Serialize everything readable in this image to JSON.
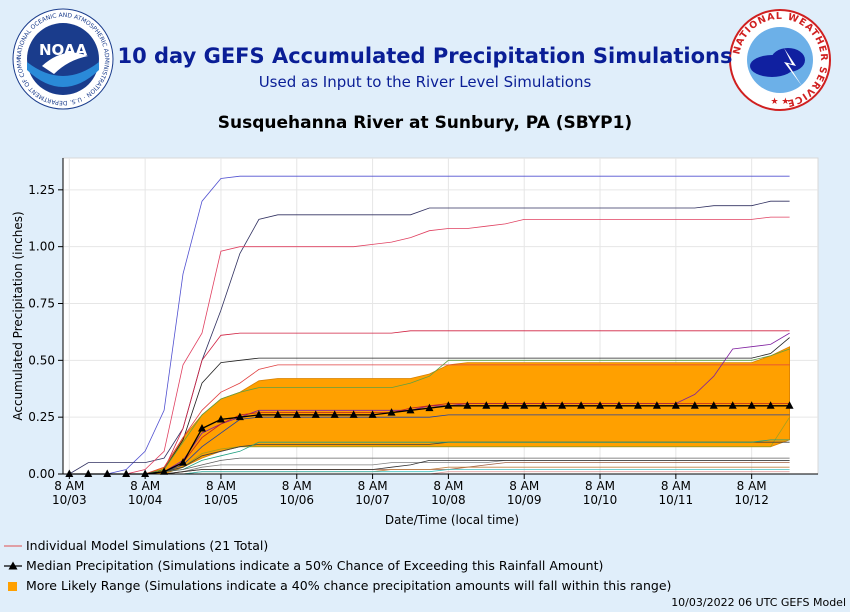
{
  "header": {
    "title": "10 day GEFS Accumulated Precipitation Simulations",
    "subtitle": "Used as Input to the River Level Simulations",
    "station": "Susquehanna River at Sunbury, PA (SBYP1)",
    "noaa_logo_text": "NOAA",
    "noaa_ring_text": "NATIONAL OCEANIC AND ATMOSPHERIC ADMINISTRATION · U.S. DEPARTMENT OF COMMERCE",
    "nws_ring_text": "NATIONAL WEATHER SERVICE"
  },
  "legend": {
    "individual": "Individual Model Simulations (21 Total)",
    "median": "Median Precipitation (Simulations indicate a 50% Chance of Exceeding this Rainfall Amount)",
    "range": "More Likely Range (Simulations indicate a 40% chance precipitation amounts will fall within this range)"
  },
  "footer": "10/03/2022 06 UTC GEFS Model",
  "colors": {
    "range_fill": "#ffa000",
    "median": "#000000",
    "individual": "#e05050",
    "title": "#0a1e96",
    "background": "#e0eefa"
  },
  "chart_data": {
    "type": "line",
    "xlabel": "Date/Time (local time)",
    "ylabel": "Accumulated Precipitation (inches)",
    "ylim": [
      0,
      1.39
    ],
    "y_ticks": [
      0.0,
      0.25,
      0.5,
      0.75,
      1.0,
      1.25
    ],
    "y_tick_labels": [
      "0.00",
      "0.25",
      "0.50",
      "0.75",
      "1.00",
      "1.25"
    ],
    "x_range_hours": [
      -2,
      237
    ],
    "x_ticks": [
      {
        "line1": "8 AM",
        "line2": "10/03"
      },
      {
        "line1": "8 AM",
        "line2": "10/04"
      },
      {
        "line1": "8 AM",
        "line2": "10/05"
      },
      {
        "line1": "8 AM",
        "line2": "10/06"
      },
      {
        "line1": "8 AM",
        "line2": "10/07"
      },
      {
        "line1": "8 AM",
        "line2": "10/08"
      },
      {
        "line1": "8 AM",
        "line2": "10/09"
      },
      {
        "line1": "8 AM",
        "line2": "10/10"
      },
      {
        "line1": "8 AM",
        "line2": "10/11"
      },
      {
        "line1": "8 AM",
        "line2": "10/12"
      }
    ],
    "x_hours": [
      0,
      6,
      12,
      18,
      24,
      30,
      36,
      42,
      48,
      54,
      60,
      66,
      72,
      78,
      84,
      90,
      96,
      102,
      108,
      114,
      120,
      126,
      132,
      138,
      144,
      150,
      156,
      162,
      168,
      174,
      180,
      186,
      192,
      198,
      204,
      210,
      216,
      222,
      228
    ],
    "median": [
      0,
      0,
      0,
      0,
      0,
      0.01,
      0.05,
      0.2,
      0.24,
      0.25,
      0.26,
      0.26,
      0.26,
      0.26,
      0.26,
      0.26,
      0.26,
      0.27,
      0.28,
      0.29,
      0.3,
      0.3,
      0.3,
      0.3,
      0.3,
      0.3,
      0.3,
      0.3,
      0.3,
      0.3,
      0.3,
      0.3,
      0.3,
      0.3,
      0.3,
      0.3,
      0.3,
      0.3,
      0.3
    ],
    "range_low": [
      0,
      0,
      0,
      0,
      0,
      0,
      0.03,
      0.07,
      0.1,
      0.12,
      0.12,
      0.12,
      0.12,
      0.12,
      0.12,
      0.12,
      0.12,
      0.12,
      0.12,
      0.12,
      0.12,
      0.12,
      0.12,
      0.12,
      0.12,
      0.12,
      0.12,
      0.12,
      0.12,
      0.12,
      0.12,
      0.12,
      0.12,
      0.12,
      0.12,
      0.12,
      0.12,
      0.12,
      0.15
    ],
    "range_high": [
      0,
      0,
      0,
      0,
      0,
      0.03,
      0.16,
      0.26,
      0.33,
      0.36,
      0.41,
      0.42,
      0.42,
      0.42,
      0.42,
      0.42,
      0.42,
      0.42,
      0.42,
      0.44,
      0.48,
      0.49,
      0.49,
      0.49,
      0.49,
      0.49,
      0.49,
      0.49,
      0.49,
      0.49,
      0.49,
      0.49,
      0.49,
      0.49,
      0.49,
      0.49,
      0.49,
      0.52,
      0.56
    ],
    "series": [
      {
        "color": "#5050d0",
        "values": [
          0,
          0,
          0,
          0.02,
          0.1,
          0.28,
          0.88,
          1.2,
          1.3,
          1.31,
          1.31,
          1.31,
          1.31,
          1.31,
          1.31,
          1.31,
          1.31,
          1.31,
          1.31,
          1.31,
          1.31,
          1.31,
          1.31,
          1.31,
          1.31,
          1.31,
          1.31,
          1.31,
          1.31,
          1.31,
          1.31,
          1.31,
          1.31,
          1.31,
          1.31,
          1.31,
          1.31,
          1.31,
          1.31
        ]
      },
      {
        "color": "#303060",
        "values": [
          0,
          0.05,
          0.05,
          0.05,
          0.05,
          0.07,
          0.2,
          0.5,
          0.72,
          0.97,
          1.12,
          1.14,
          1.14,
          1.14,
          1.14,
          1.14,
          1.14,
          1.14,
          1.14,
          1.17,
          1.17,
          1.17,
          1.17,
          1.17,
          1.17,
          1.17,
          1.17,
          1.17,
          1.17,
          1.17,
          1.17,
          1.17,
          1.17,
          1.17,
          1.18,
          1.18,
          1.18,
          1.2,
          1.2
        ]
      },
      {
        "color": "#e04060",
        "values": [
          0,
          0,
          0,
          0,
          0.02,
          0.1,
          0.48,
          0.62,
          0.98,
          1.0,
          1.0,
          1.0,
          1.0,
          1.0,
          1.0,
          1.0,
          1.01,
          1.02,
          1.04,
          1.07,
          1.08,
          1.08,
          1.09,
          1.1,
          1.12,
          1.12,
          1.12,
          1.12,
          1.12,
          1.12,
          1.12,
          1.12,
          1.12,
          1.12,
          1.12,
          1.12,
          1.12,
          1.13,
          1.13
        ]
      },
      {
        "color": "#d02040",
        "values": [
          0,
          0,
          0,
          0,
          0,
          0.02,
          0.2,
          0.5,
          0.61,
          0.62,
          0.62,
          0.62,
          0.62,
          0.62,
          0.62,
          0.62,
          0.62,
          0.62,
          0.63,
          0.63,
          0.63,
          0.63,
          0.63,
          0.63,
          0.63,
          0.63,
          0.63,
          0.63,
          0.63,
          0.63,
          0.63,
          0.63,
          0.63,
          0.63,
          0.63,
          0.63,
          0.63,
          0.63,
          0.63
        ]
      },
      {
        "color": "#202020",
        "values": [
          0,
          0,
          0,
          0,
          0,
          0.02,
          0.15,
          0.4,
          0.49,
          0.5,
          0.51,
          0.51,
          0.51,
          0.51,
          0.51,
          0.51,
          0.51,
          0.51,
          0.51,
          0.51,
          0.51,
          0.51,
          0.51,
          0.51,
          0.51,
          0.51,
          0.51,
          0.51,
          0.51,
          0.51,
          0.51,
          0.51,
          0.51,
          0.51,
          0.51,
          0.51,
          0.51,
          0.53,
          0.6
        ]
      },
      {
        "color": "#e04040",
        "values": [
          0,
          0,
          0,
          0,
          0,
          0.03,
          0.16,
          0.28,
          0.36,
          0.4,
          0.46,
          0.48,
          0.48,
          0.48,
          0.48,
          0.48,
          0.48,
          0.48,
          0.48,
          0.48,
          0.48,
          0.48,
          0.48,
          0.48,
          0.48,
          0.48,
          0.48,
          0.48,
          0.48,
          0.48,
          0.48,
          0.48,
          0.48,
          0.48,
          0.48,
          0.48,
          0.48,
          0.48,
          0.48
        ]
      },
      {
        "color": "#60a040",
        "values": [
          0,
          0,
          0,
          0,
          0,
          0.02,
          0.14,
          0.26,
          0.33,
          0.36,
          0.38,
          0.38,
          0.38,
          0.38,
          0.38,
          0.38,
          0.38,
          0.38,
          0.4,
          0.43,
          0.5,
          0.5,
          0.5,
          0.5,
          0.5,
          0.5,
          0.5,
          0.5,
          0.5,
          0.5,
          0.5,
          0.5,
          0.5,
          0.5,
          0.5,
          0.5,
          0.5,
          0.52,
          0.55
        ]
      },
      {
        "color": "#8020a0",
        "values": [
          0,
          0,
          0,
          0,
          0,
          0.01,
          0.06,
          0.18,
          0.22,
          0.25,
          0.28,
          0.28,
          0.28,
          0.28,
          0.28,
          0.28,
          0.28,
          0.28,
          0.28,
          0.3,
          0.3,
          0.31,
          0.31,
          0.31,
          0.31,
          0.31,
          0.31,
          0.31,
          0.31,
          0.31,
          0.31,
          0.31,
          0.31,
          0.35,
          0.43,
          0.55,
          0.56,
          0.57,
          0.62
        ]
      },
      {
        "color": "#c02020",
        "values": [
          0,
          0,
          0,
          0,
          0,
          0.01,
          0.05,
          0.16,
          0.22,
          0.26,
          0.27,
          0.27,
          0.27,
          0.27,
          0.27,
          0.27,
          0.27,
          0.27,
          0.29,
          0.3,
          0.31,
          0.31,
          0.31,
          0.31,
          0.31,
          0.31,
          0.31,
          0.31,
          0.31,
          0.31,
          0.31,
          0.31,
          0.31,
          0.31,
          0.31,
          0.31,
          0.31,
          0.31,
          0.31
        ]
      },
      {
        "color": "#2040a0",
        "values": [
          0,
          0,
          0,
          0,
          0,
          0.01,
          0.04,
          0.12,
          0.18,
          0.24,
          0.25,
          0.25,
          0.25,
          0.25,
          0.25,
          0.25,
          0.25,
          0.25,
          0.25,
          0.25,
          0.26,
          0.26,
          0.26,
          0.26,
          0.26,
          0.26,
          0.26,
          0.26,
          0.26,
          0.26,
          0.26,
          0.26,
          0.26,
          0.26,
          0.26,
          0.26,
          0.26,
          0.26,
          0.26
        ]
      },
      {
        "color": "#a0a020",
        "values": [
          0,
          0,
          0,
          0,
          0,
          0.01,
          0.03,
          0.09,
          0.11,
          0.12,
          0.12,
          0.12,
          0.12,
          0.12,
          0.12,
          0.12,
          0.12,
          0.12,
          0.12,
          0.12,
          0.12,
          0.12,
          0.12,
          0.12,
          0.12,
          0.12,
          0.12,
          0.12,
          0.12,
          0.12,
          0.12,
          0.12,
          0.12,
          0.12,
          0.12,
          0.12,
          0.12,
          0.12,
          0.25
        ]
      },
      {
        "color": "#404040",
        "values": [
          0,
          0,
          0,
          0,
          0,
          0.01,
          0.03,
          0.08,
          0.1,
          0.12,
          0.13,
          0.13,
          0.13,
          0.13,
          0.13,
          0.13,
          0.13,
          0.13,
          0.13,
          0.13,
          0.14,
          0.14,
          0.14,
          0.14,
          0.14,
          0.14,
          0.14,
          0.14,
          0.14,
          0.14,
          0.14,
          0.14,
          0.14,
          0.14,
          0.14,
          0.14,
          0.14,
          0.14,
          0.14
        ]
      },
      {
        "color": "#20a080",
        "values": [
          0,
          0,
          0,
          0,
          0,
          0.01,
          0.02,
          0.06,
          0.08,
          0.1,
          0.14,
          0.14,
          0.14,
          0.14,
          0.14,
          0.14,
          0.14,
          0.14,
          0.14,
          0.14,
          0.14,
          0.14,
          0.14,
          0.14,
          0.14,
          0.14,
          0.14,
          0.14,
          0.14,
          0.14,
          0.14,
          0.14,
          0.14,
          0.14,
          0.14,
          0.14,
          0.14,
          0.15,
          0.15
        ]
      },
      {
        "color": "#606060",
        "values": [
          0,
          0,
          0,
          0,
          0,
          0.01,
          0.02,
          0.04,
          0.06,
          0.07,
          0.07,
          0.07,
          0.07,
          0.07,
          0.07,
          0.07,
          0.07,
          0.07,
          0.07,
          0.07,
          0.07,
          0.07,
          0.07,
          0.07,
          0.07,
          0.07,
          0.07,
          0.07,
          0.07,
          0.07,
          0.07,
          0.07,
          0.07,
          0.07,
          0.07,
          0.07,
          0.07,
          0.07,
          0.07
        ]
      },
      {
        "color": "#808080",
        "values": [
          0,
          0,
          0,
          0,
          0,
          0,
          0.01,
          0.03,
          0.04,
          0.04,
          0.04,
          0.04,
          0.04,
          0.04,
          0.04,
          0.04,
          0.04,
          0.05,
          0.05,
          0.05,
          0.05,
          0.05,
          0.05,
          0.06,
          0.06,
          0.06,
          0.06,
          0.06,
          0.06,
          0.06,
          0.06,
          0.06,
          0.06,
          0.06,
          0.06,
          0.06,
          0.06,
          0.06,
          0.06
        ]
      },
      {
        "color": "#a06040",
        "values": [
          0,
          0,
          0,
          0,
          0,
          0,
          0.01,
          0.02,
          0.02,
          0.02,
          0.02,
          0.02,
          0.02,
          0.02,
          0.02,
          0.02,
          0.02,
          0.02,
          0.02,
          0.02,
          0.02,
          0.03,
          0.04,
          0.05,
          0.05,
          0.05,
          0.05,
          0.05,
          0.05,
          0.05,
          0.05,
          0.05,
          0.05,
          0.05,
          0.05,
          0.05,
          0.05,
          0.05,
          0.05
        ]
      },
      {
        "color": "#c08040",
        "values": [
          0,
          0,
          0,
          0,
          0,
          0,
          0,
          0.01,
          0.01,
          0.01,
          0.01,
          0.01,
          0.01,
          0.01,
          0.01,
          0.01,
          0.01,
          0.02,
          0.02,
          0.02,
          0.03,
          0.03,
          0.03,
          0.03,
          0.03,
          0.03,
          0.03,
          0.03,
          0.03,
          0.03,
          0.03,
          0.03,
          0.03,
          0.03,
          0.03,
          0.03,
          0.03,
          0.03,
          0.03
        ]
      },
      {
        "color": "#40c0c0",
        "values": [
          0,
          0,
          0,
          0,
          0,
          0,
          0,
          0.01,
          0.01,
          0.01,
          0.01,
          0.01,
          0.01,
          0.01,
          0.01,
          0.01,
          0.01,
          0.01,
          0.01,
          0.01,
          0.02,
          0.02,
          0.02,
          0.02,
          0.02,
          0.02,
          0.02,
          0.02,
          0.02,
          0.02,
          0.02,
          0.02,
          0.02,
          0.02,
          0.02,
          0.02,
          0.02,
          0.02,
          0.02
        ]
      },
      {
        "color": "#e0a0a0",
        "values": [
          0,
          0,
          0,
          0,
          0,
          0,
          0,
          0,
          0,
          0,
          0,
          0,
          0,
          0,
          0,
          0,
          0,
          0,
          0,
          0,
          0.01,
          0.01,
          0.01,
          0.01,
          0.01,
          0.01,
          0.01,
          0.01,
          0.01,
          0.01,
          0.01,
          0.01,
          0.01,
          0.01,
          0.01,
          0.01,
          0.01,
          0.01,
          0.01
        ]
      },
      {
        "color": "#303030",
        "values": [
          0,
          0,
          0,
          0,
          0,
          0,
          0.01,
          0.02,
          0.02,
          0.02,
          0.02,
          0.02,
          0.02,
          0.02,
          0.02,
          0.02,
          0.02,
          0.03,
          0.04,
          0.06,
          0.06,
          0.06,
          0.06,
          0.06,
          0.06,
          0.06,
          0.06,
          0.06,
          0.06,
          0.06,
          0.06,
          0.06,
          0.06,
          0.06,
          0.06,
          0.06,
          0.06,
          0.06,
          0.06
        ]
      },
      {
        "color": "#b0b0b0",
        "values": [
          0,
          0,
          0,
          0,
          0,
          0,
          0,
          0,
          0,
          0,
          0,
          0,
          0,
          0,
          0,
          0,
          0,
          0,
          0,
          0,
          0,
          0,
          0,
          0,
          0,
          0,
          0,
          0,
          0,
          0,
          0,
          0,
          0,
          0,
          0,
          0,
          0,
          0,
          0
        ]
      }
    ]
  }
}
